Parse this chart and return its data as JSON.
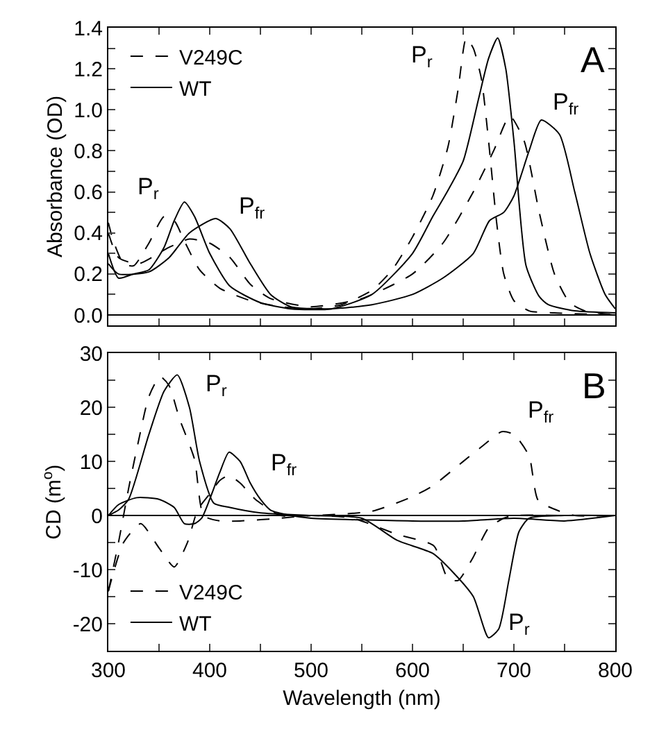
{
  "chart_data": [
    {
      "type": "line",
      "ylabel": "Absorbance (OD)",
      "xlim": [
        300,
        800
      ],
      "xticks": [
        {
          "value": 300,
          "label": null
        },
        {
          "value": 350,
          "label": null
        },
        {
          "value": 400,
          "label": null
        },
        {
          "value": 450,
          "label": null
        },
        {
          "value": 500,
          "label": null
        },
        {
          "value": 550,
          "label": null
        },
        {
          "value": 600,
          "label": null
        },
        {
          "value": 650,
          "label": null
        },
        {
          "value": 700,
          "label": null
        },
        {
          "value": 750,
          "label": null
        },
        {
          "value": 800,
          "label": null
        }
      ],
      "ylim": [
        -0.05,
        1.4
      ],
      "yticks": [
        {
          "value": 0.0,
          "label": "0.0"
        },
        {
          "value": 0.1,
          "label": null
        },
        {
          "value": 0.2,
          "label": "0.2"
        },
        {
          "value": 0.3,
          "label": null
        },
        {
          "value": 0.4,
          "label": "0.4"
        },
        {
          "value": 0.5,
          "label": null
        },
        {
          "value": 0.6,
          "label": "0.6"
        },
        {
          "value": 0.7,
          "label": null
        },
        {
          "value": 0.8,
          "label": "0.8"
        },
        {
          "value": 0.9,
          "label": null
        },
        {
          "value": 1.0,
          "label": "1.0"
        },
        {
          "value": 1.1,
          "label": null
        },
        {
          "value": 1.2,
          "label": "1.2"
        },
        {
          "value": 1.3,
          "label": null
        },
        {
          "value": 1.4,
          "label": "1.4"
        }
      ],
      "tick_labels": "y",
      "legend": "top left",
      "marker": "none",
      "ref_lines": [
        {
          "axis": "y",
          "value": 0,
          "color": "#000000"
        }
      ],
      "annotations": [
        "A",
        {
          "text": "P$_{r}$",
          "x": 355,
          "y": 0.48
        },
        {
          "text": "P$_{fr}$",
          "x": 406,
          "y": 0.47
        },
        {
          "text": "P$_{r}$",
          "x": 653,
          "y": 1.35
        },
        {
          "text": "P$_{fr}$",
          "x": 727,
          "y": 0.95
        }
      ],
      "series": [
        {
          "name": "V249C",
          "color": "#000000",
          "line_style": "dashed",
          "x": [
            300,
            305,
            315,
            325,
            340,
            355,
            365,
            375,
            390,
            410,
            440,
            470,
            500,
            530,
            560,
            580,
            600,
            620,
            635,
            645,
            653,
            660,
            668,
            675,
            683,
            690,
            700,
            715,
            740,
            800
          ],
          "values": [
            0.45,
            0.36,
            0.25,
            0.24,
            0.35,
            0.48,
            0.46,
            0.36,
            0.22,
            0.13,
            0.07,
            0.04,
            0.03,
            0.05,
            0.12,
            0.22,
            0.38,
            0.58,
            0.82,
            1.1,
            1.35,
            1.3,
            1.15,
            0.85,
            0.45,
            0.2,
            0.07,
            0.02,
            0.01,
            0.0
          ]
        },
        {
          "color": "#000000",
          "line_style": "dashed",
          "x": [
            300,
            310,
            330,
            360,
            380,
            400,
            420,
            440,
            460,
            500,
            550,
            600,
            630,
            660,
            680,
            696,
            710,
            725,
            740,
            755,
            770,
            800
          ],
          "values": [
            0.4,
            0.28,
            0.25,
            0.33,
            0.37,
            0.35,
            0.28,
            0.15,
            0.08,
            0.04,
            0.08,
            0.2,
            0.35,
            0.6,
            0.8,
            0.97,
            0.85,
            0.5,
            0.2,
            0.06,
            0.02,
            0.0
          ]
        },
        {
          "name": "WT",
          "color": "#000000",
          "line_style": "solid",
          "x": [
            300,
            310,
            325,
            340,
            355,
            365,
            375,
            385,
            400,
            420,
            450,
            480,
            520,
            560,
            600,
            620,
            633,
            650,
            665,
            675,
            684,
            692,
            700,
            712,
            725,
            734,
            760,
            800
          ],
          "values": [
            0.3,
            0.18,
            0.2,
            0.22,
            0.33,
            0.46,
            0.55,
            0.48,
            0.3,
            0.14,
            0.06,
            0.03,
            0.03,
            0.1,
            0.3,
            0.48,
            0.59,
            0.75,
            1.05,
            1.25,
            1.35,
            1.2,
            0.85,
            0.24,
            0.09,
            0.05,
            0.02,
            0.01
          ]
        },
        {
          "color": "#000000",
          "line_style": "solid",
          "x": [
            300,
            310,
            340,
            360,
            380,
            406,
            420,
            440,
            460,
            480,
            520,
            560,
            600,
            630,
            660,
            676,
            690,
            700,
            715,
            727,
            745,
            760,
            775,
            790,
            800
          ],
          "values": [
            0.25,
            0.2,
            0.21,
            0.28,
            0.4,
            0.47,
            0.42,
            0.25,
            0.1,
            0.04,
            0.03,
            0.05,
            0.1,
            0.18,
            0.3,
            0.46,
            0.5,
            0.58,
            0.8,
            0.95,
            0.88,
            0.6,
            0.3,
            0.1,
            0.03
          ]
        }
      ]
    },
    {
      "type": "line",
      "xlabel": "Wavelength (nm)",
      "ylabel": "CD (m$^{o}$)",
      "xlim": [
        300,
        800
      ],
      "xticks": [
        {
          "value": 300,
          "label": "300"
        },
        {
          "value": 350,
          "label": null
        },
        {
          "value": 400,
          "label": "400"
        },
        {
          "value": 450,
          "label": null
        },
        {
          "value": 500,
          "label": "500"
        },
        {
          "value": 550,
          "label": null
        },
        {
          "value": 600,
          "label": "600"
        },
        {
          "value": 650,
          "label": null
        },
        {
          "value": 700,
          "label": "700"
        },
        {
          "value": 750,
          "label": null
        },
        {
          "value": 800,
          "label": "800"
        }
      ],
      "ylim": [
        -25,
        30
      ],
      "yticks": [
        {
          "value": -20,
          "label": "-20"
        },
        {
          "value": -15,
          "label": null
        },
        {
          "value": -10,
          "label": "-10"
        },
        {
          "value": -5,
          "label": null
        },
        {
          "value": 0,
          "label": "0"
        },
        {
          "value": 5,
          "label": null
        },
        {
          "value": 10,
          "label": "10"
        },
        {
          "value": 15,
          "label": null
        },
        {
          "value": 20,
          "label": "20"
        },
        {
          "value": 25,
          "label": null
        },
        {
          "value": 30,
          "label": "30"
        }
      ],
      "legend": "bottom left",
      "marker": "none",
      "ref_lines": [
        {
          "axis": "y",
          "value": 0,
          "color": "#000000"
        }
      ],
      "annotations": [
        "B",
        {
          "text": "P$_{r}$",
          "x": 368,
          "y": 26
        },
        {
          "text": "P$_{fr}$",
          "x": 419,
          "y": 7.4
        },
        {
          "text": "P$_{fr}$",
          "x": 688,
          "y": 15.5
        },
        {
          "text": "P$_{r}$",
          "x": 675,
          "y": -22.6
        }
      ],
      "series": [
        {
          "name": "V249C",
          "color": "#000000",
          "line_style": "dashed",
          "x": [
            300,
            310,
            320,
            330,
            340,
            351,
            360,
            370,
            385,
            394,
            410,
            430,
            470,
            500,
            541,
            585,
            621,
            635,
            645,
            659,
            675,
            690,
            700,
            750,
            800
          ],
          "values": [
            -14,
            -5,
            5,
            14,
            22,
            25.7,
            24,
            18,
            10.4,
            0,
            -1,
            -1,
            -0.5,
            0,
            -0.5,
            -3.5,
            -5.6,
            -11.7,
            -12,
            -8,
            -2.3,
            -0.5,
            0,
            0,
            0
          ]
        },
        {
          "color": "#000000",
          "line_style": "dashed",
          "x": [
            300,
            315,
            332,
            350,
            365,
            378,
            388,
            400,
            410,
            419,
            430,
            445,
            470,
            500,
            560,
            600,
            620,
            650,
            670,
            688,
            700,
            715,
            724,
            745,
            760,
            800
          ],
          "values": [
            -14,
            -5,
            -1.5,
            -6,
            -9.5,
            -5,
            1,
            4,
            6.5,
            7.4,
            6,
            3,
            0,
            0,
            0.8,
            3.5,
            5.5,
            10,
            13,
            15.5,
            15,
            11,
            2.8,
            0.8,
            0,
            0
          ]
        },
        {
          "name": "WT",
          "color": "#000000",
          "line_style": "solid",
          "x": [
            300,
            310,
            320,
            340,
            355,
            368,
            380,
            390,
            404,
            420,
            450,
            500,
            550,
            585,
            620,
            640,
            660,
            675,
            685,
            695,
            705,
            715,
            750,
            800
          ],
          "values": [
            0,
            1,
            3,
            15,
            23,
            26,
            20,
            10,
            2.3,
            1.5,
            0.5,
            0,
            -0.5,
            -4.6,
            -7,
            -10.5,
            -15,
            -22.6,
            -21,
            -12,
            -3,
            -0.5,
            0,
            0
          ]
        },
        {
          "color": "#000000",
          "line_style": "solid",
          "x": [
            300,
            310,
            328,
            350,
            365,
            375,
            385,
            392,
            400,
            410,
            419,
            430,
            440,
            450,
            460,
            480,
            500,
            600,
            650,
            700,
            750,
            800
          ],
          "values": [
            0,
            2,
            3.3,
            3,
            1.5,
            -1.5,
            -1.5,
            -0.5,
            3,
            8,
            11.7,
            10,
            6,
            3,
            1,
            0,
            -0.5,
            -1,
            -1,
            -0.5,
            -1,
            0
          ]
        }
      ]
    }
  ]
}
